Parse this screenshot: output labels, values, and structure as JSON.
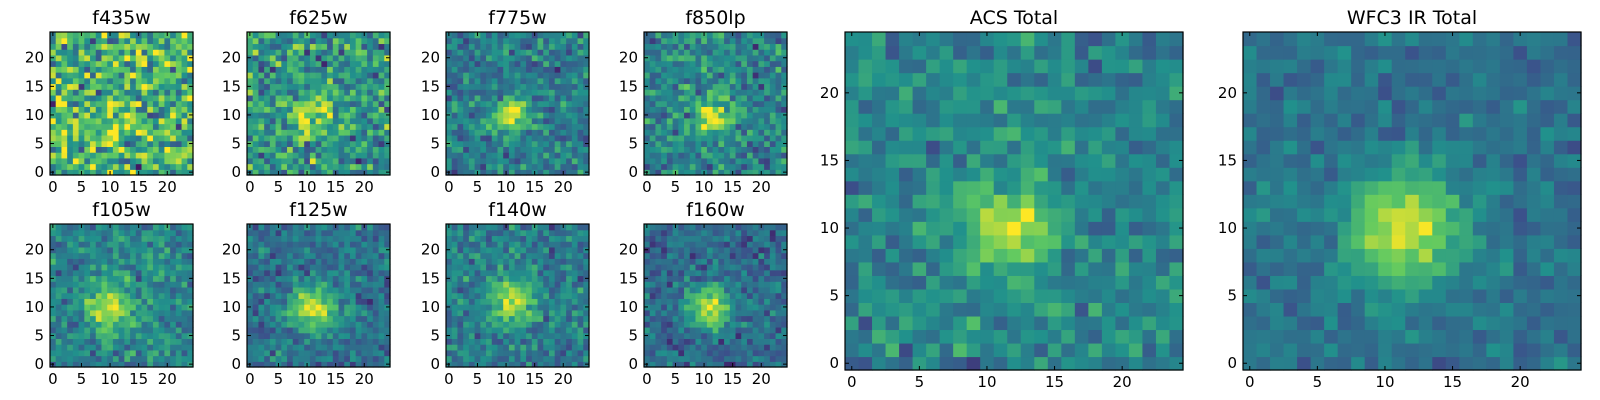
{
  "figure": {
    "colormap": "viridis",
    "colormap_stops": [
      "#440154",
      "#3b528b",
      "#21918c",
      "#5ec962",
      "#fde725"
    ]
  },
  "chart_data": [
    {
      "type": "heatmap",
      "title": "f435w",
      "grid_size": 25,
      "source_center": [
        11,
        10
      ],
      "peak": 0.1,
      "sigma": 3.0,
      "noise": 0.42,
      "offset": 0.64,
      "seed": 11,
      "xticks": [
        "0",
        "5",
        "10",
        "15",
        "20"
      ],
      "yticks": [
        "0",
        "5",
        "10",
        "15",
        "20"
      ],
      "xlim": [
        0,
        24
      ],
      "ylim": [
        0,
        24
      ]
    },
    {
      "type": "heatmap",
      "title": "f625w",
      "grid_size": 25,
      "source_center": [
        11,
        10
      ],
      "peak": 0.35,
      "sigma": 2.6,
      "noise": 0.32,
      "offset": 0.52,
      "seed": 23,
      "xticks": [
        "0",
        "5",
        "10",
        "15",
        "20"
      ],
      "yticks": [
        "0",
        "5",
        "10",
        "15",
        "20"
      ],
      "xlim": [
        0,
        24
      ],
      "ylim": [
        0,
        24
      ]
    },
    {
      "type": "heatmap",
      "title": "f775w",
      "grid_size": 25,
      "source_center": [
        11,
        10
      ],
      "peak": 0.55,
      "sigma": 2.0,
      "noise": 0.22,
      "offset": 0.42,
      "seed": 37,
      "xticks": [
        "0",
        "5",
        "10",
        "15",
        "20"
      ],
      "yticks": [
        "0",
        "5",
        "10",
        "15",
        "20"
      ],
      "xlim": [
        0,
        24
      ],
      "ylim": [
        0,
        24
      ]
    },
    {
      "type": "heatmap",
      "title": "f850lp",
      "grid_size": 25,
      "source_center": [
        11.5,
        10
      ],
      "peak": 0.5,
      "sigma": 2.2,
      "noise": 0.24,
      "offset": 0.45,
      "seed": 41,
      "xticks": [
        "0",
        "5",
        "10",
        "15",
        "20"
      ],
      "yticks": [
        "0",
        "5",
        "10",
        "15",
        "20"
      ],
      "xlim": [
        0,
        24
      ],
      "ylim": [
        0,
        24
      ]
    },
    {
      "type": "heatmap",
      "title": "f105w",
      "grid_size": 25,
      "source_center": [
        10,
        10
      ],
      "peak": 0.45,
      "sigma": 3.0,
      "noise": 0.2,
      "offset": 0.45,
      "seed": 53,
      "xticks": [
        "0",
        "5",
        "10",
        "15",
        "20"
      ],
      "yticks": [
        "0",
        "5",
        "10",
        "15",
        "20"
      ],
      "xlim": [
        0,
        24
      ],
      "ylim": [
        0,
        24
      ]
    },
    {
      "type": "heatmap",
      "title": "f125w",
      "grid_size": 25,
      "source_center": [
        11,
        10
      ],
      "peak": 0.55,
      "sigma": 2.8,
      "noise": 0.18,
      "offset": 0.38,
      "seed": 67,
      "xticks": [
        "0",
        "5",
        "10",
        "15",
        "20"
      ],
      "yticks": [
        "0",
        "5",
        "10",
        "15",
        "20"
      ],
      "xlim": [
        0,
        24
      ],
      "ylim": [
        0,
        24
      ]
    },
    {
      "type": "heatmap",
      "title": "f140w",
      "grid_size": 25,
      "source_center": [
        11,
        11
      ],
      "peak": 0.5,
      "sigma": 2.6,
      "noise": 0.2,
      "offset": 0.42,
      "seed": 79,
      "xticks": [
        "0",
        "5",
        "10",
        "15",
        "20"
      ],
      "yticks": [
        "0",
        "5",
        "10",
        "15",
        "20"
      ],
      "xlim": [
        0,
        24
      ],
      "ylim": [
        0,
        24
      ]
    },
    {
      "type": "heatmap",
      "title": "f160w",
      "grid_size": 25,
      "source_center": [
        11,
        10
      ],
      "peak": 0.55,
      "sigma": 2.6,
      "noise": 0.18,
      "offset": 0.35,
      "seed": 83,
      "xticks": [
        "0",
        "5",
        "10",
        "15",
        "20"
      ],
      "yticks": [
        "0",
        "5",
        "10",
        "15",
        "20"
      ],
      "xlim": [
        0,
        24
      ],
      "ylim": [
        0,
        24
      ]
    },
    {
      "type": "heatmap",
      "title": "ACS Total",
      "grid_size": 25,
      "source_center": [
        11.5,
        10
      ],
      "peak": 0.5,
      "sigma": 2.2,
      "noise": 0.18,
      "offset": 0.45,
      "seed": 97,
      "xticks": [
        "0",
        "5",
        "10",
        "15",
        "20"
      ],
      "yticks": [
        "0",
        "5",
        "10",
        "15",
        "20"
      ],
      "xlim": [
        0,
        24
      ],
      "ylim": [
        0,
        24
      ]
    },
    {
      "type": "heatmap",
      "title": "WFC3 IR Total",
      "grid_size": 25,
      "source_center": [
        11.5,
        10
      ],
      "peak": 0.55,
      "sigma": 3.0,
      "noise": 0.12,
      "offset": 0.38,
      "seed": 101,
      "xticks": [
        "0",
        "5",
        "10",
        "15",
        "20"
      ],
      "yticks": [
        "0",
        "5",
        "10",
        "15",
        "20"
      ],
      "xlim": [
        0,
        24
      ],
      "ylim": [
        0,
        24
      ]
    }
  ]
}
